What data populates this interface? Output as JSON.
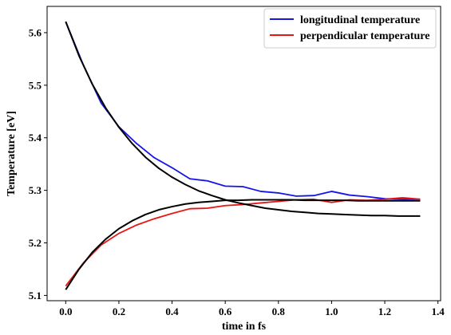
{
  "chart_data": {
    "type": "line",
    "title": "",
    "xlabel": "time in fs",
    "ylabel": "Temperature [eV]",
    "xlim": [
      -0.07,
      1.41
    ],
    "ylim": [
      5.09,
      5.65
    ],
    "xticks": [
      0.0,
      0.2,
      0.4,
      0.6,
      0.8,
      1.0,
      1.2,
      1.4
    ],
    "xtick_labels": [
      "0.0",
      "0.2",
      "0.4",
      "0.6",
      "0.8",
      "1.0",
      "1.2",
      "1.4"
    ],
    "yticks": [
      5.1,
      5.2,
      5.3,
      5.4,
      5.5,
      5.6
    ],
    "ytick_labels": [
      "5.1",
      "5.2",
      "5.3",
      "5.4",
      "5.5",
      "5.6"
    ],
    "grid": false,
    "legend_position": "top-right",
    "series": [
      {
        "name": "longitudinal temperature",
        "color": "#1515e8",
        "x": [
          0.0,
          0.0667,
          0.1333,
          0.2,
          0.2667,
          0.3333,
          0.4,
          0.4667,
          0.5333,
          0.6,
          0.6667,
          0.7333,
          0.8,
          0.8667,
          0.9333,
          1.0,
          1.0667,
          1.1333,
          1.2,
          1.2667,
          1.3333
        ],
        "y": [
          5.621,
          5.538,
          5.466,
          5.421,
          5.389,
          5.362,
          5.343,
          5.322,
          5.318,
          5.308,
          5.307,
          5.298,
          5.295,
          5.289,
          5.29,
          5.298,
          5.291,
          5.288,
          5.284,
          5.283,
          5.283
        ]
      },
      {
        "name": "perpendicular temperature",
        "color": "#e81515",
        "x": [
          0.0,
          0.0667,
          0.1333,
          0.2,
          0.2667,
          0.3333,
          0.4,
          0.4667,
          0.5333,
          0.6,
          0.6667,
          0.7333,
          0.8,
          0.8667,
          0.9333,
          1.0,
          1.0667,
          1.1333,
          1.2,
          1.2667,
          1.3333
        ],
        "y": [
          5.118,
          5.162,
          5.196,
          5.218,
          5.234,
          5.246,
          5.256,
          5.265,
          5.266,
          5.271,
          5.273,
          5.276,
          5.279,
          5.282,
          5.283,
          5.277,
          5.282,
          5.281,
          5.283,
          5.286,
          5.283
        ]
      },
      {
        "color": "#000000",
        "x": [
          0.0,
          0.05,
          0.1,
          0.15,
          0.2,
          0.25,
          0.3,
          0.35,
          0.4,
          0.45,
          0.5,
          0.55,
          0.6,
          0.65,
          0.7,
          0.75,
          0.8,
          0.85,
          0.9,
          0.95,
          1.0,
          1.05,
          1.1,
          1.15,
          1.2,
          1.25,
          1.3,
          1.3333
        ],
        "y": [
          5.621,
          5.556,
          5.502,
          5.457,
          5.42,
          5.389,
          5.363,
          5.342,
          5.325,
          5.311,
          5.299,
          5.29,
          5.282,
          5.276,
          5.271,
          5.266,
          5.263,
          5.26,
          5.258,
          5.256,
          5.255,
          5.254,
          5.253,
          5.252,
          5.252,
          5.251,
          5.251,
          5.251
        ]
      },
      {
        "color": "#000000",
        "x": [
          0.0,
          0.05,
          0.1,
          0.15,
          0.2,
          0.25,
          0.3,
          0.35,
          0.4,
          0.45,
          0.5,
          0.55,
          0.6,
          0.65,
          0.7,
          0.75,
          0.8,
          0.85,
          0.9,
          0.95,
          1.0,
          1.05,
          1.1,
          1.15,
          1.2,
          1.25,
          1.3,
          1.3333
        ],
        "y": [
          5.111,
          5.15,
          5.182,
          5.207,
          5.227,
          5.242,
          5.254,
          5.263,
          5.269,
          5.274,
          5.277,
          5.279,
          5.281,
          5.281,
          5.282,
          5.282,
          5.282,
          5.282,
          5.281,
          5.281,
          5.281,
          5.281,
          5.28,
          5.28,
          5.28,
          5.28,
          5.28,
          5.28
        ]
      }
    ]
  }
}
